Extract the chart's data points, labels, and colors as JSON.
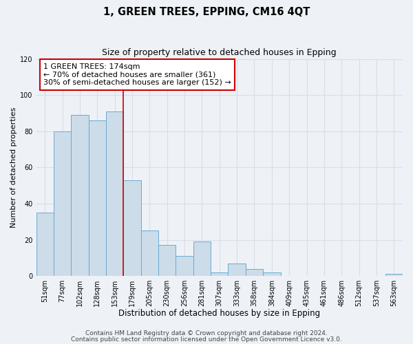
{
  "title": "1, GREEN TREES, EPPING, CM16 4QT",
  "subtitle": "Size of property relative to detached houses in Epping",
  "xlabel": "Distribution of detached houses by size in Epping",
  "ylabel": "Number of detached properties",
  "bar_heights": [
    35,
    80,
    89,
    86,
    91,
    53,
    25,
    17,
    11,
    19,
    2,
    7,
    4,
    2,
    0,
    0,
    0,
    0,
    0,
    0,
    1
  ],
  "bin_labels": [
    "51sqm",
    "77sqm",
    "102sqm",
    "128sqm",
    "153sqm",
    "179sqm",
    "205sqm",
    "230sqm",
    "256sqm",
    "281sqm",
    "307sqm",
    "333sqm",
    "358sqm",
    "384sqm",
    "409sqm",
    "435sqm",
    "461sqm",
    "486sqm",
    "512sqm",
    "537sqm",
    "563sqm"
  ],
  "bar_color": "#ccdce8",
  "bar_edge_color": "#6aaad4",
  "bg_color": "#eef2f7",
  "grid_color": "#d8dde8",
  "vline_x_index": 5,
  "vline_color": "#cc0000",
  "annotation_line1": "1 GREEN TREES: 174sqm",
  "annotation_line2": "← 70% of detached houses are smaller (361)",
  "annotation_line3": "30% of semi-detached houses are larger (152) →",
  "annotation_box_edge_color": "#cc0000",
  "ylim": [
    0,
    120
  ],
  "yticks": [
    0,
    20,
    40,
    60,
    80,
    100,
    120
  ],
  "footer_line1": "Contains HM Land Registry data © Crown copyright and database right 2024.",
  "footer_line2": "Contains public sector information licensed under the Open Government Licence v3.0.",
  "title_fontsize": 10.5,
  "subtitle_fontsize": 9,
  "xlabel_fontsize": 8.5,
  "ylabel_fontsize": 8,
  "tick_fontsize": 7,
  "annotation_fontsize": 8,
  "footer_fontsize": 6.5
}
